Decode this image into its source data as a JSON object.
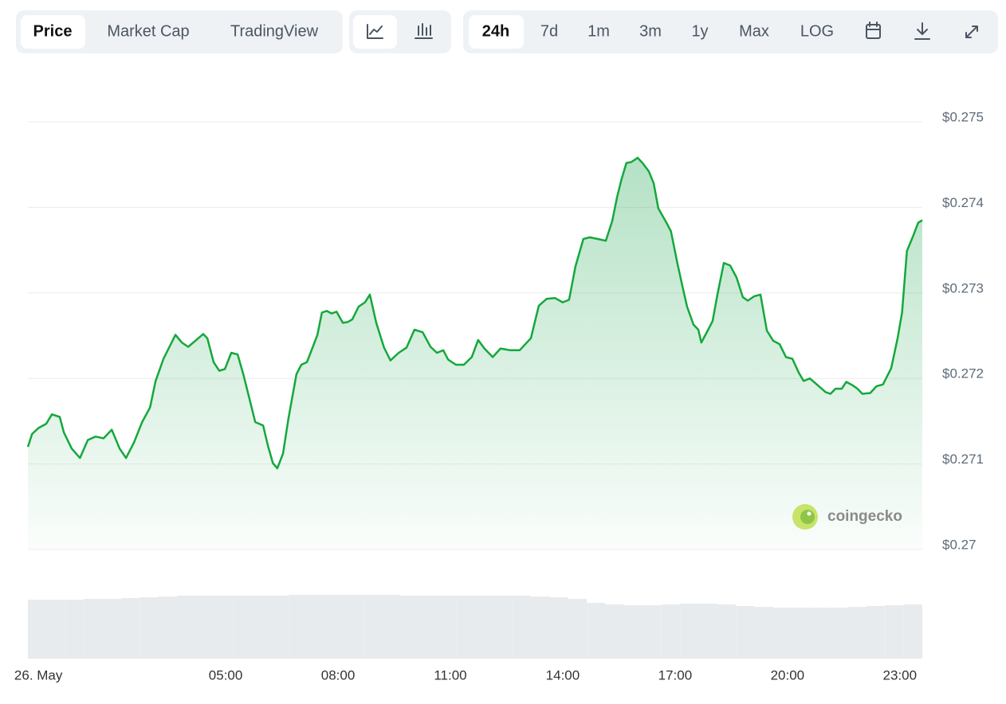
{
  "toolbar": {
    "tabs": [
      "Price",
      "Market Cap",
      "TradingView"
    ],
    "ranges": [
      "24h",
      "7d",
      "1m",
      "3m",
      "1y",
      "Max",
      "LOG"
    ]
  },
  "chart_data": {
    "type": "line",
    "watermark": "coingecko",
    "x": [
      -0.28,
      -0.17,
      0,
      0.21,
      0.36,
      0.57,
      0.68,
      0.89,
      1.11,
      1.32,
      1.53,
      1.74,
      1.96,
      2.17,
      2.34,
      2.55,
      2.77,
      2.98,
      3.13,
      3.34,
      3.49,
      3.66,
      3.83,
      4.0,
      4.19,
      4.4,
      4.51,
      4.68,
      4.83,
      4.98,
      5.15,
      5.32,
      5.47,
      5.62,
      5.79,
      6.0,
      6.13,
      6.26,
      6.38,
      6.53,
      6.68,
      6.89,
      7.02,
      7.17,
      7.32,
      7.45,
      7.57,
      7.7,
      7.83,
      7.96,
      8.13,
      8.26,
      8.38,
      8.55,
      8.72,
      8.85,
      9.02,
      9.23,
      9.4,
      9.62,
      9.83,
      10.04,
      10.26,
      10.47,
      10.64,
      10.81,
      10.94,
      11.15,
      11.36,
      11.57,
      11.74,
      11.91,
      12.13,
      12.34,
      12.6,
      12.85,
      13.02,
      13.15,
      13.36,
      13.57,
      13.79,
      14.0,
      14.17,
      14.34,
      14.55,
      14.72,
      14.94,
      15.15,
      15.32,
      15.45,
      15.57,
      15.7,
      15.83,
      16.0,
      16.13,
      16.3,
      16.43,
      16.55,
      16.77,
      16.89,
      17.06,
      17.19,
      17.32,
      17.49,
      17.62,
      17.7,
      17.87,
      18.0,
      18.13,
      18.3,
      18.47,
      18.64,
      18.81,
      18.94,
      19.11,
      19.28,
      19.45,
      19.62,
      19.79,
      19.96,
      20.13,
      20.3,
      20.43,
      20.6,
      20.81,
      21.02,
      21.15,
      21.28,
      21.45,
      21.57,
      21.74,
      21.87,
      22.0,
      22.21,
      22.38,
      22.55,
      22.77,
      22.94,
      23.06,
      23.19,
      23.36,
      23.49,
      23.6
    ],
    "series": [
      {
        "color": "#14a83c",
        "values": [
          0.2712,
          0.27135,
          0.27142,
          0.27147,
          0.27158,
          0.27155,
          0.27137,
          0.27118,
          0.27107,
          0.27128,
          0.27132,
          0.2713,
          0.2714,
          0.27118,
          0.27107,
          0.27125,
          0.27149,
          0.27166,
          0.27197,
          0.27223,
          0.27236,
          0.27251,
          0.27242,
          0.27237,
          0.27244,
          0.27252,
          0.27247,
          0.27219,
          0.27209,
          0.27211,
          0.2723,
          0.27228,
          0.27205,
          0.27179,
          0.27149,
          0.27145,
          0.27121,
          0.27101,
          0.27095,
          0.27112,
          0.27154,
          0.27205,
          0.27216,
          0.27219,
          0.27236,
          0.27251,
          0.27277,
          0.27279,
          0.27276,
          0.27278,
          0.27265,
          0.27266,
          0.27269,
          0.27284,
          0.27289,
          0.27298,
          0.27265,
          0.27236,
          0.27221,
          0.2723,
          0.27236,
          0.27257,
          0.27254,
          0.27237,
          0.2723,
          0.27233,
          0.27222,
          0.27216,
          0.27216,
          0.27225,
          0.27245,
          0.27235,
          0.27225,
          0.27235,
          0.27233,
          0.27233,
          0.27241,
          0.27247,
          0.27285,
          0.27293,
          0.27294,
          0.27289,
          0.27292,
          0.27331,
          0.27363,
          0.27365,
          0.27363,
          0.27361,
          0.27384,
          0.27412,
          0.27433,
          0.27452,
          0.27453,
          0.27458,
          0.27452,
          0.27442,
          0.27428,
          0.27399,
          0.27382,
          0.27372,
          0.27335,
          0.27309,
          0.27284,
          0.27263,
          0.27257,
          0.27242,
          0.27256,
          0.27267,
          0.27298,
          0.27335,
          0.27332,
          0.27318,
          0.27295,
          0.27291,
          0.27296,
          0.27298,
          0.27256,
          0.27244,
          0.2724,
          0.27225,
          0.27223,
          0.27207,
          0.27197,
          0.272,
          0.27192,
          0.27184,
          0.27182,
          0.27188,
          0.27188,
          0.27196,
          0.27192,
          0.27188,
          0.27182,
          0.27183,
          0.27191,
          0.27193,
          0.27212,
          0.27247,
          0.27277,
          0.27349,
          0.27367,
          0.27382,
          0.27385
        ]
      }
    ],
    "volume_values": [
      74,
      74,
      74,
      75,
      75,
      76,
      77,
      78,
      79,
      79,
      79,
      79,
      79,
      79,
      80,
      80,
      80,
      80,
      80,
      80,
      79,
      79,
      79,
      79,
      79,
      79,
      79,
      78,
      77,
      75,
      70,
      68,
      67,
      67,
      68,
      69,
      69,
      68,
      66,
      65,
      64,
      64,
      64,
      64,
      65,
      66,
      67,
      68
    ],
    "xlim": [
      -0.28,
      23.6
    ],
    "xticks": [
      {
        "value": 0,
        "label": "26. May"
      },
      {
        "value": 5,
        "label": "05:00"
      },
      {
        "value": 8,
        "label": "08:00"
      },
      {
        "value": 11,
        "label": "11:00"
      },
      {
        "value": 14,
        "label": "14:00"
      },
      {
        "value": 17,
        "label": "17:00"
      },
      {
        "value": 20,
        "label": "20:00"
      },
      {
        "value": 23,
        "label": "23:00"
      }
    ],
    "ylim": [
      0.27,
      0.275
    ],
    "yticks": [
      {
        "value": 0.27,
        "label": "$0.27"
      },
      {
        "value": 0.271,
        "label": "$0.271"
      },
      {
        "value": 0.272,
        "label": "$0.272"
      },
      {
        "value": 0.273,
        "label": "$0.273"
      },
      {
        "value": 0.274,
        "label": "$0.274"
      },
      {
        "value": 0.275,
        "label": "$0.275"
      }
    ],
    "grid": true
  }
}
